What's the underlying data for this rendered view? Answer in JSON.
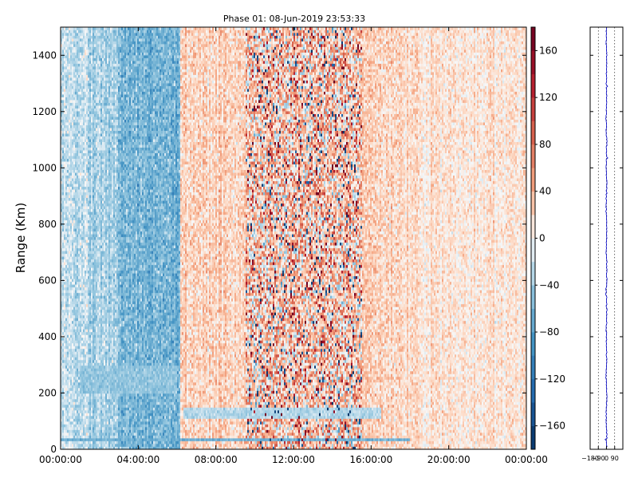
{
  "chart_data": [
    {
      "type": "heatmap",
      "title": "Phase 01: 08-Jun-2019 23:53:33",
      "xlabel": "",
      "ylabel": "Range (Km)",
      "x_ticks": [
        "00:00:00",
        "04:00:00",
        "08:00:00",
        "12:00:00",
        "16:00:00",
        "20:00:00",
        "00:00:00"
      ],
      "x_range_hours": [
        0,
        24
      ],
      "y_ticks": [
        0,
        200,
        400,
        600,
        800,
        1000,
        1200,
        1400
      ],
      "y_range": [
        0,
        1500
      ],
      "colorbar": {
        "ticks": [
          -160,
          -120,
          -80,
          -40,
          0,
          40,
          80,
          120,
          160
        ],
        "range": [
          -180,
          180
        ],
        "colormap": "RdBu_r",
        "low_color": "#08306b",
        "mid_color": "#f7f7f7",
        "high_color": "#67000d"
      },
      "regions": [
        {
          "hours": [
            0,
            1.5
          ],
          "mean_phase": -25,
          "noise": 25
        },
        {
          "hours": [
            1.5,
            3
          ],
          "mean_phase": -35,
          "noise": 25
        },
        {
          "hours": [
            3,
            6.2
          ],
          "mean_phase": -60,
          "noise": 30
        },
        {
          "hours": [
            6.2,
            9.5
          ],
          "mean_phase": 22,
          "noise": 25
        },
        {
          "hours": [
            9.5,
            15.5
          ],
          "mean_phase": 28,
          "noise": 70
        },
        {
          "hours": [
            15.5,
            17.5
          ],
          "mean_phase": 22,
          "noise": 25
        },
        {
          "hours": [
            17.5,
            24
          ],
          "mean_phase": 14,
          "noise": 20
        }
      ],
      "bands": [
        {
          "range_km": [
            25,
            40
          ],
          "hours": [
            0,
            18
          ],
          "mean_phase": -65
        },
        {
          "range_km": [
            110,
            150
          ],
          "hours": [
            6.3,
            16.5
          ],
          "mean_phase": -30
        },
        {
          "range_km": [
            200,
            300
          ],
          "hours": [
            1,
            6
          ],
          "mean_phase": -45
        }
      ]
    },
    {
      "type": "line",
      "title": "",
      "xlabel": "",
      "ylabel": "",
      "x_ticks": [
        "−180",
        "−90",
        "0",
        "90"
      ],
      "x_range": [
        -180,
        180
      ],
      "y_range": [
        0,
        1500
      ],
      "dotted_gridlines_x": [
        -90,
        0,
        90
      ],
      "line_color": "#0000cc",
      "profile_center": 0,
      "spikes_km": [
        35,
        1290,
        1035
      ]
    }
  ]
}
